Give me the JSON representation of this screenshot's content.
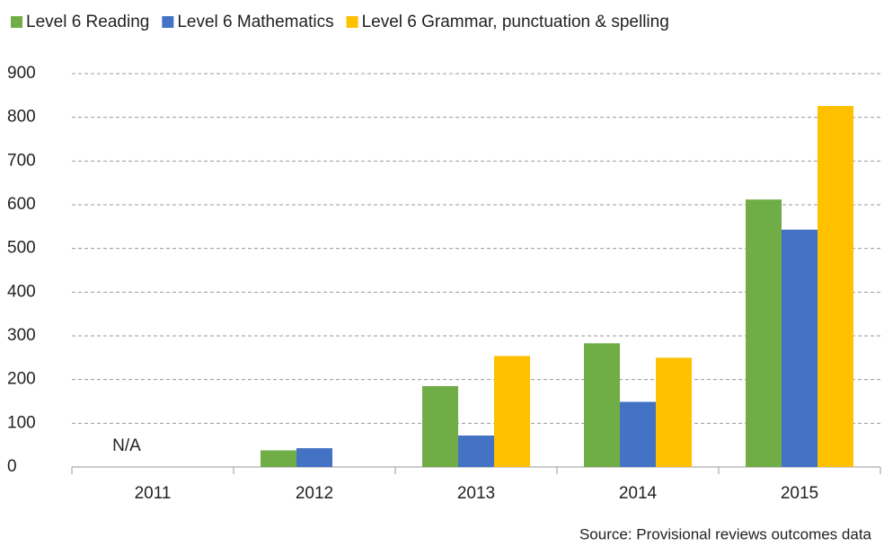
{
  "chart_data": {
    "type": "bar",
    "categories": [
      "2011",
      "2012",
      "2013",
      "2014",
      "2015"
    ],
    "series": [
      {
        "name": "Level 6 Reading",
        "color": "#70ad47",
        "values": [
          null,
          38,
          185,
          283,
          612
        ]
      },
      {
        "name": "Level 6 Mathematics",
        "color": "#4472c4",
        "values": [
          null,
          43,
          72,
          149,
          543
        ]
      },
      {
        "name": "Level 6 Grammar, punctuation & spelling",
        "color": "#ffc000",
        "values": [
          null,
          null,
          254,
          250,
          826
        ]
      }
    ],
    "ylim": [
      0,
      900
    ],
    "yticks": [
      0,
      100,
      200,
      300,
      400,
      500,
      600,
      700,
      800,
      900
    ],
    "grid": true,
    "legend": "top",
    "annotation": "N/A",
    "source": "Source: Provisional reviews outcomes data"
  }
}
